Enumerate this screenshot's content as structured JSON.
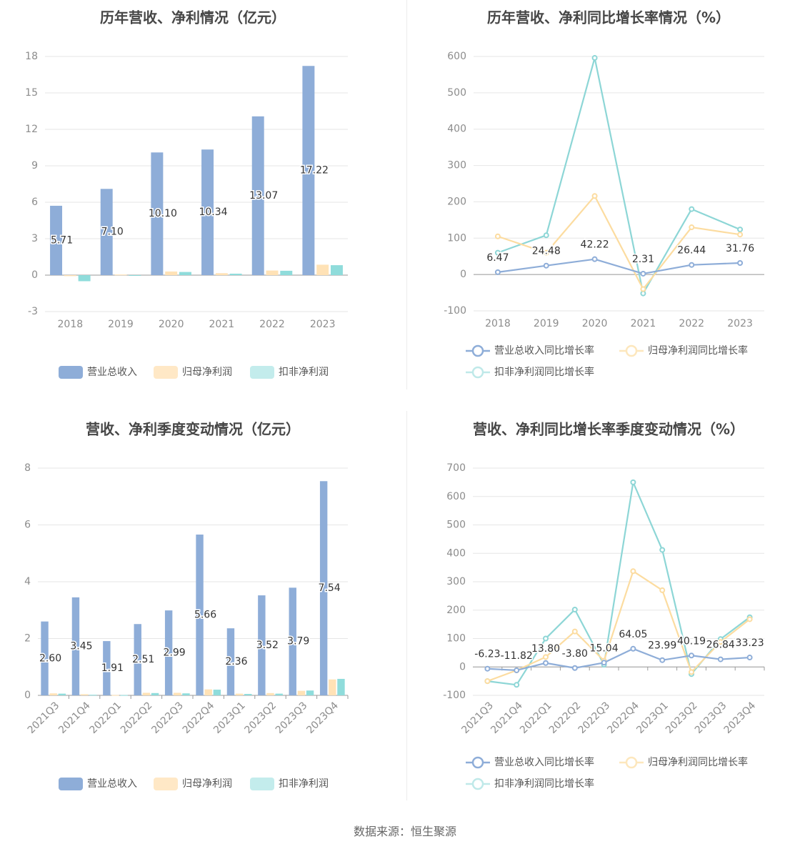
{
  "source": "数据来源：恒生聚源",
  "colors": {
    "revenue": "#8eadd8",
    "net_profit": "#ffe2b6",
    "deducted": "#8fdcdb",
    "rev_line": "#8eadd8",
    "np_line": "#fcdca0",
    "ded_line": "#8dd6d6"
  },
  "chart_data": [
    {
      "type": "bar",
      "title": "历年营收、净利情况（亿元）",
      "categories": [
        "2018",
        "2019",
        "2020",
        "2021",
        "2022",
        "2023"
      ],
      "yticks": [
        "18",
        "15",
        "12",
        "9",
        "6",
        "3",
        "0",
        "-3"
      ],
      "ylim": [
        -3,
        18
      ],
      "series": [
        {
          "name": "营业总收入",
          "values": [
            5.71,
            7.1,
            10.1,
            10.34,
            13.07,
            17.22
          ],
          "labels": [
            "5.71",
            "7.10",
            "10.10",
            "10.34",
            "13.07",
            "17.22"
          ]
        },
        {
          "name": "归母净利润",
          "values": [
            -0.08,
            0.05,
            0.3,
            0.16,
            0.38,
            0.86
          ]
        },
        {
          "name": "扣非净利润",
          "values": [
            -0.5,
            -0.01,
            0.26,
            0.12,
            0.36,
            0.82
          ]
        }
      ],
      "legend": "bottom"
    },
    {
      "type": "line",
      "title": "历年营收、净利同比增长率情况（%）",
      "categories": [
        "2018",
        "2019",
        "2020",
        "2021",
        "2022",
        "2023"
      ],
      "yticks": [
        "600",
        "500",
        "400",
        "300",
        "200",
        "100",
        "0",
        "-100"
      ],
      "ylim": [
        -100,
        600
      ],
      "series": [
        {
          "name": "营业总收入同比增长率",
          "values": [
            6.47,
            24.48,
            42.22,
            2.31,
            26.44,
            31.76
          ],
          "labels": [
            "6.47",
            "24.48",
            "42.22",
            "2.31",
            "26.44",
            "31.76"
          ]
        },
        {
          "name": "归母净利润同比增长率",
          "values": [
            105,
            60,
            216,
            -40,
            130,
            110
          ]
        },
        {
          "name": "扣非净利润同比增长率",
          "values": [
            60,
            108,
            596,
            -52,
            180,
            124
          ]
        }
      ],
      "legend": "bottom"
    },
    {
      "type": "bar",
      "title": "营收、净利季度变动情况（亿元）",
      "categories": [
        "2021Q3",
        "2021Q4",
        "2022Q1",
        "2022Q2",
        "2022Q3",
        "2022Q4",
        "2023Q1",
        "2023Q2",
        "2023Q3",
        "2023Q4"
      ],
      "yticks": [
        "8",
        "6",
        "4",
        "2",
        "0"
      ],
      "ylim": [
        0,
        8
      ],
      "series": [
        {
          "name": "营业总收入",
          "values": [
            2.6,
            3.45,
            1.91,
            2.51,
            2.99,
            5.66,
            2.36,
            3.52,
            3.79,
            7.54
          ],
          "labels": [
            "2.60",
            "3.45",
            "1.91",
            "2.51",
            "2.99",
            "5.66",
            "2.36",
            "3.52",
            "3.79",
            "7.54"
          ]
        },
        {
          "name": "归母净利润",
          "values": [
            0.07,
            0.04,
            0.01,
            0.09,
            0.09,
            0.21,
            0.06,
            0.08,
            0.16,
            0.56
          ]
        },
        {
          "name": "扣非净利润",
          "values": [
            0.06,
            0.02,
            0.01,
            0.08,
            0.07,
            0.2,
            0.05,
            0.06,
            0.17,
            0.58
          ]
        }
      ],
      "legend": "bottom"
    },
    {
      "type": "line",
      "title": "营收、净利同比增长率季度变动情况（%）",
      "categories": [
        "2021Q3",
        "2021Q4",
        "2022Q1",
        "2022Q2",
        "2022Q3",
        "2022Q4",
        "2023Q1",
        "2023Q2",
        "2023Q3",
        "2023Q4"
      ],
      "yticks": [
        "700",
        "600",
        "500",
        "400",
        "300",
        "200",
        "100",
        "0",
        "-100"
      ],
      "ylim": [
        -100,
        700
      ],
      "series": [
        {
          "name": "营业总收入同比增长率",
          "values": [
            -6.23,
            -11.82,
            13.8,
            -3.8,
            15.04,
            64.05,
            23.99,
            40.19,
            26.84,
            33.23
          ],
          "labels": [
            "-6.23",
            "-11.82",
            "13.80",
            "-3.80",
            "15.04",
            "64.05",
            "23.99",
            "40.19",
            "26.84",
            "33.23"
          ]
        },
        {
          "name": "归母净利润同比增长率",
          "values": [
            -50,
            -12,
            35,
            125,
            22,
            337,
            270,
            -18,
            88,
            168
          ]
        },
        {
          "name": "扣非净利润同比增长率",
          "values": [
            -50,
            -63,
            100,
            202,
            8,
            650,
            412,
            -25,
            98,
            175
          ]
        }
      ],
      "legend": "bottom"
    }
  ]
}
